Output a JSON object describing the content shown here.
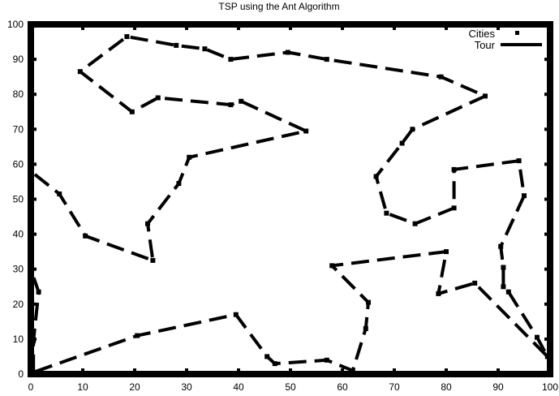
{
  "chart_data": {
    "type": "line",
    "title": "TSP using the Ant Algorithm",
    "xlabel": "",
    "ylabel": "",
    "xlim": [
      0,
      100
    ],
    "ylim": [
      0,
      100
    ],
    "x_ticks": [
      "0",
      "10",
      "20",
      "30",
      "40",
      "50",
      "60",
      "70",
      "80",
      "90",
      "100"
    ],
    "y_ticks": [
      "0",
      "10",
      "20",
      "30",
      "40",
      "50",
      "60",
      "70",
      "80",
      "90",
      "100"
    ],
    "grid": false,
    "legend_position": "top-right",
    "legend": [
      "Cities",
      "Tour"
    ],
    "series": [
      {
        "name": "Cities",
        "style": "points",
        "points": [
          [
            0.5,
            0.5
          ],
          [
            0.5,
            9.5
          ],
          [
            1.5,
            23.5
          ],
          [
            0,
            30
          ],
          [
            0,
            58
          ],
          [
            5.5,
            51.5
          ],
          [
            10.5,
            39.5
          ],
          [
            23.5,
            32.5
          ],
          [
            22.5,
            43
          ],
          [
            28.5,
            54.5
          ],
          [
            30.5,
            62
          ],
          [
            53,
            69.5
          ],
          [
            40.5,
            78
          ],
          [
            38.5,
            77
          ],
          [
            24.5,
            79
          ],
          [
            19.5,
            75
          ],
          [
            9.5,
            86.5
          ],
          [
            18.5,
            96.5
          ],
          [
            28,
            94
          ],
          [
            33.5,
            93
          ],
          [
            38.5,
            90
          ],
          [
            49.5,
            92
          ],
          [
            57,
            90
          ],
          [
            79,
            85
          ],
          [
            87.5,
            79.5
          ],
          [
            73.5,
            70
          ],
          [
            71.5,
            66
          ],
          [
            66.5,
            56.5
          ],
          [
            68.5,
            46
          ],
          [
            74,
            43
          ],
          [
            81.5,
            47.5
          ],
          [
            81.5,
            58.5
          ],
          [
            94,
            61
          ],
          [
            95,
            51
          ],
          [
            90.5,
            36.5
          ],
          [
            91,
            30.5
          ],
          [
            91,
            25
          ],
          [
            92,
            23.5
          ],
          [
            97.5,
            10.5
          ],
          [
            99.5,
            5
          ],
          [
            85.5,
            26
          ],
          [
            78.5,
            23
          ],
          [
            80,
            35
          ],
          [
            58,
            31
          ],
          [
            65,
            20.5
          ],
          [
            64.5,
            13
          ],
          [
            62,
            1
          ],
          [
            57,
            4
          ],
          [
            47,
            3
          ],
          [
            45.5,
            5
          ],
          [
            39.5,
            17
          ],
          [
            20.5,
            11
          ]
        ]
      },
      {
        "name": "Tour",
        "style": "dashed-line",
        "path": [
          [
            0.5,
            0.5
          ],
          [
            0.5,
            9.5
          ],
          [
            1.5,
            23.5
          ],
          [
            0,
            30
          ],
          [
            0,
            58
          ],
          [
            5.5,
            51.5
          ],
          [
            10.5,
            39.5
          ],
          [
            23.5,
            32.5
          ],
          [
            22.5,
            43
          ],
          [
            28.5,
            54.5
          ],
          [
            30.5,
            62
          ],
          [
            53,
            69.5
          ],
          [
            40.5,
            78
          ],
          [
            38.5,
            77
          ],
          [
            24.5,
            79
          ],
          [
            19.5,
            75
          ],
          [
            9.5,
            86.5
          ],
          [
            18.5,
            96.5
          ],
          [
            28,
            94
          ],
          [
            33.5,
            93
          ],
          [
            38.5,
            90
          ],
          [
            49.5,
            92
          ],
          [
            57,
            90
          ],
          [
            79,
            85
          ],
          [
            87.5,
            79.5
          ],
          [
            73.5,
            70
          ],
          [
            71.5,
            66
          ],
          [
            66.5,
            56.5
          ],
          [
            68.5,
            46
          ],
          [
            74,
            43
          ],
          [
            81.5,
            47.5
          ],
          [
            81.5,
            58.5
          ],
          [
            94,
            61
          ],
          [
            95,
            51
          ],
          [
            90.5,
            36.5
          ],
          [
            91,
            30.5
          ],
          [
            91,
            25
          ],
          [
            92,
            23.5
          ],
          [
            97.5,
            10.5
          ],
          [
            99.5,
            5
          ],
          [
            85.5,
            26
          ],
          [
            78.5,
            23
          ],
          [
            80,
            35
          ],
          [
            58,
            31
          ],
          [
            65,
            20.5
          ],
          [
            64.5,
            13
          ],
          [
            62,
            1
          ],
          [
            57,
            4
          ],
          [
            47,
            3
          ],
          [
            45.5,
            5
          ],
          [
            39.5,
            17
          ],
          [
            20.5,
            11
          ],
          [
            0.5,
            0.5
          ]
        ]
      }
    ]
  }
}
